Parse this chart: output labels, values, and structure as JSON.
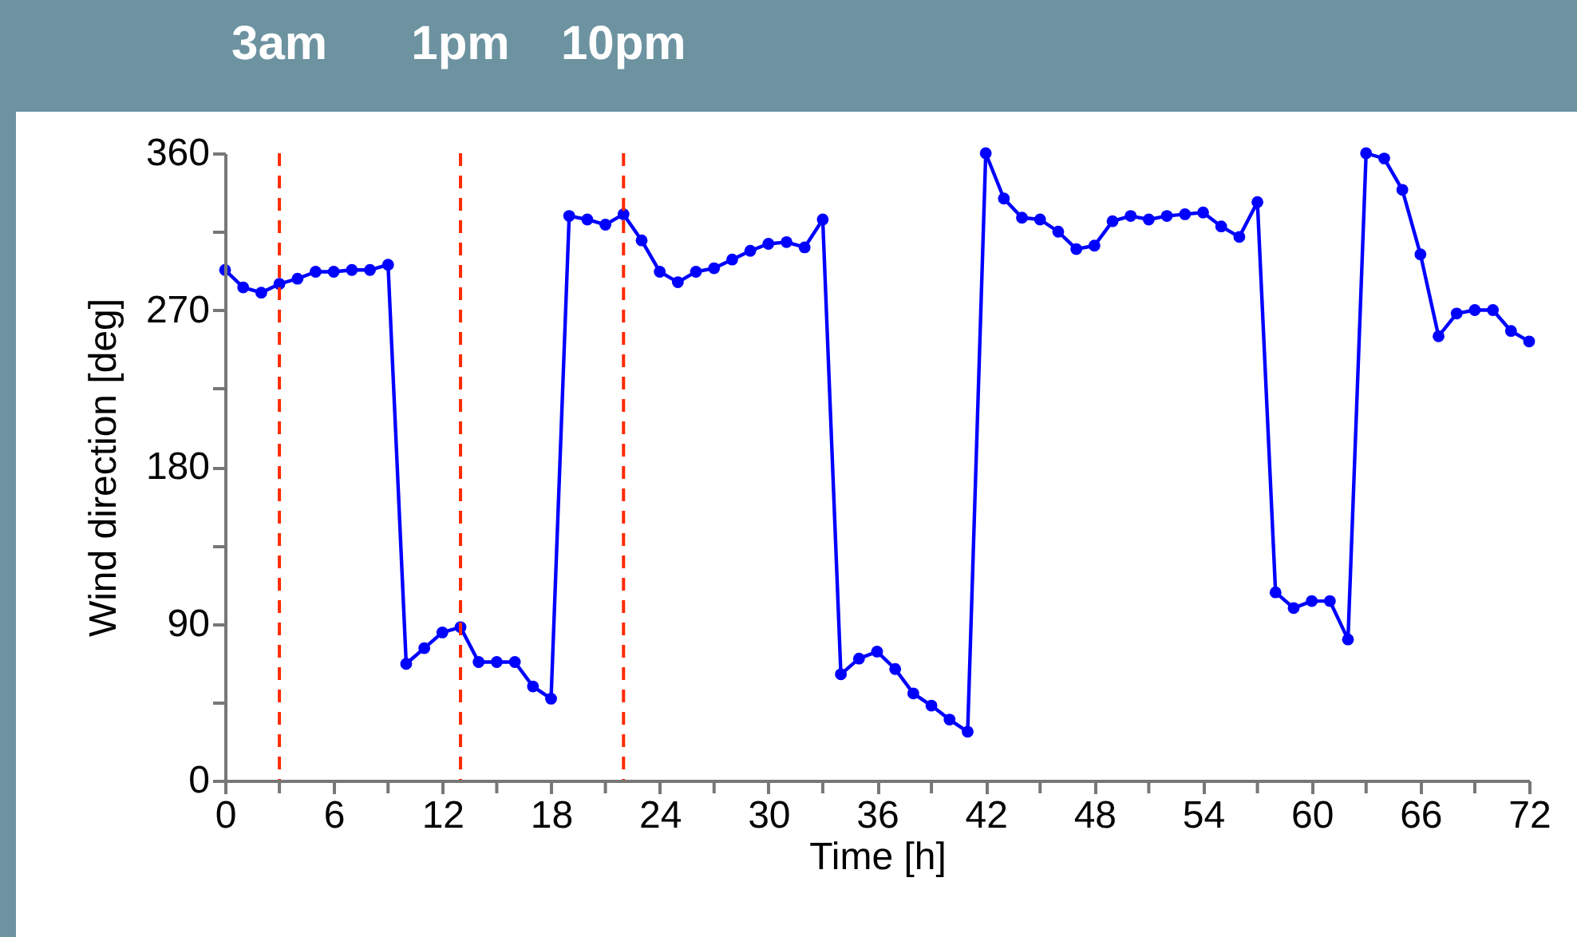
{
  "chart_data": {
    "type": "line",
    "xlabel": "Time [h]",
    "ylabel": "Wind direction [deg]",
    "x": [
      0,
      1,
      2,
      3,
      4,
      5,
      6,
      7,
      8,
      9,
      10,
      11,
      12,
      13,
      14,
      15,
      16,
      17,
      18,
      19,
      20,
      21,
      22,
      23,
      24,
      25,
      26,
      27,
      28,
      29,
      30,
      31,
      32,
      33,
      34,
      35,
      36,
      37,
      38,
      39,
      40,
      41,
      42,
      43,
      44,
      45,
      46,
      47,
      48,
      49,
      50,
      51,
      52,
      53,
      54,
      55,
      56,
      57,
      58,
      59,
      60,
      61,
      62,
      63,
      64,
      65,
      66,
      67,
      68,
      69,
      70,
      71,
      72
    ],
    "series": [
      {
        "color": "#0000ff",
        "values": [
          293,
          283,
          280,
          285,
          288,
          292,
          292,
          293,
          293,
          296,
          67,
          76,
          85,
          88,
          68,
          68,
          68,
          54,
          47,
          324,
          322,
          319,
          325,
          310,
          292,
          286,
          292,
          294,
          299,
          304,
          308,
          309,
          306,
          322,
          61,
          70,
          74,
          64,
          50,
          43,
          35,
          28,
          360,
          334,
          323,
          322,
          315,
          305,
          307,
          321,
          324,
          322,
          324,
          325,
          326,
          318,
          312,
          332,
          108,
          99,
          103,
          103,
          81,
          360,
          357,
          339,
          302,
          255,
          268,
          270,
          270,
          258,
          252
        ]
      }
    ],
    "xlim": [
      0,
      72
    ],
    "ylim": [
      0,
      360
    ],
    "xticks": [
      0,
      {
        "value": 3,
        "label": null
      },
      6,
      {
        "value": 9,
        "label": null
      },
      12,
      {
        "value": 15,
        "label": null
      },
      18,
      {
        "value": 21,
        "label": null
      },
      24,
      {
        "value": 27,
        "label": null
      },
      30,
      {
        "value": 33,
        "label": null
      },
      36,
      {
        "value": 39,
        "label": null
      },
      42,
      {
        "value": 45,
        "label": null
      },
      48,
      {
        "value": 51,
        "label": null
      },
      54,
      {
        "value": 57,
        "label": null
      },
      60,
      {
        "value": 63,
        "label": null
      },
      66,
      {
        "value": 69,
        "label": null
      },
      72
    ],
    "yticks": [
      0,
      {
        "value": 45,
        "label": null
      },
      90,
      {
        "value": 135,
        "label": null
      },
      180,
      {
        "value": 225,
        "label": null
      },
      270,
      {
        "value": 315,
        "label": null
      },
      360
    ],
    "ref_lines": [
      {
        "axis": "x",
        "value": 3,
        "label": "3am",
        "color": "#ff2a00",
        "line_style": "dashed"
      },
      {
        "axis": "x",
        "value": 13,
        "label": "1pm",
        "color": "#ff2a00",
        "line_style": "dashed"
      },
      {
        "axis": "x",
        "value": 22,
        "label": "10pm",
        "color": "#ff2a00",
        "line_style": "dashed"
      }
    ],
    "marker": "circle",
    "line_style": "solid",
    "grid": false
  }
}
